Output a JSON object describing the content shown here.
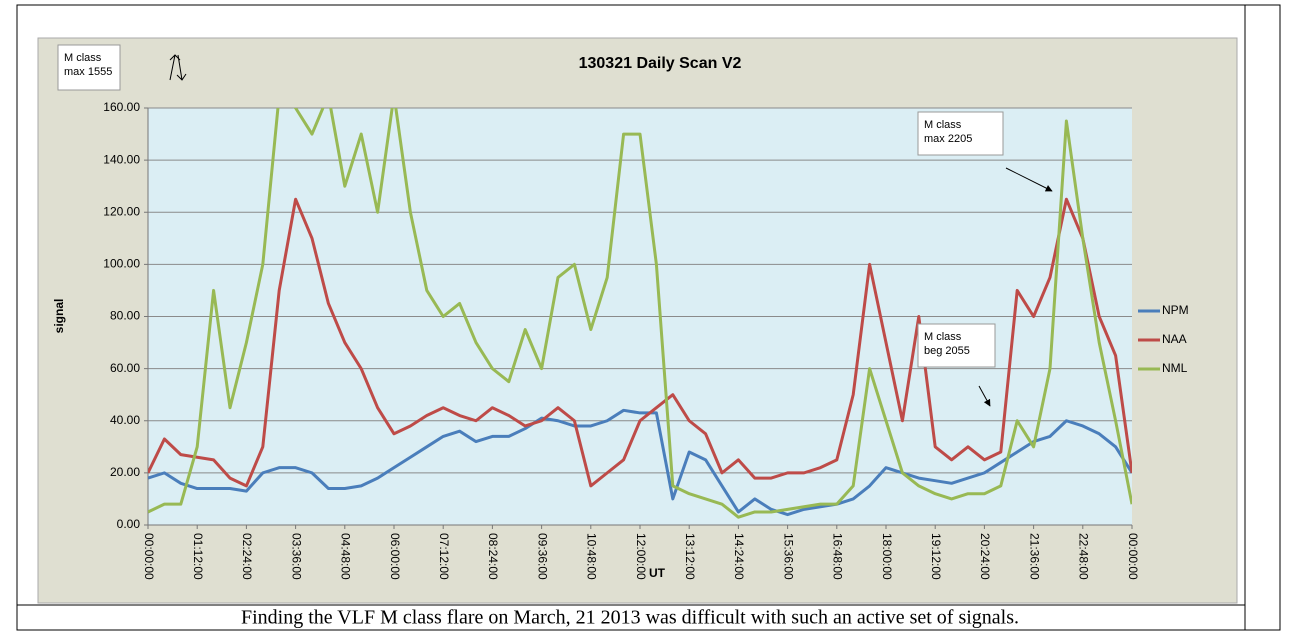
{
  "chart_data": {
    "type": "line",
    "title": "130321 Daily Scan V2",
    "x_label": "UT",
    "y_label": "signal",
    "x": [
      0,
      0.4,
      0.8,
      1.2,
      1.6,
      2,
      2.4,
      2.8,
      3.2,
      3.6,
      4,
      4.4,
      4.8,
      5.2,
      5.6,
      6,
      6.4,
      6.8,
      7.2,
      7.6,
      8,
      8.4,
      8.8,
      9.2,
      9.6,
      10,
      10.4,
      10.8,
      11.2,
      11.6,
      12,
      12.4,
      12.8,
      13.2,
      13.6,
      14,
      14.4,
      14.8,
      15.2,
      15.6,
      16,
      16.4,
      16.8,
      17.2,
      17.6,
      18,
      18.4,
      18.8,
      19.2,
      19.6,
      20,
      20.4,
      20.8,
      21.2,
      21.6,
      22,
      22.4,
      22.8,
      23.2,
      23.6,
      24
    ],
    "series": [
      {
        "name": "NPM",
        "color": "#4a7ebb",
        "values": [
          18,
          20,
          16,
          14,
          14,
          14,
          13,
          20,
          22,
          22,
          20,
          14,
          14,
          15,
          18,
          22,
          26,
          30,
          34,
          36,
          32,
          34,
          34,
          37,
          41,
          40,
          38,
          38,
          40,
          44,
          43,
          43,
          10,
          28,
          25,
          15,
          5,
          10,
          6,
          4,
          6,
          7,
          8,
          10,
          15,
          22,
          20,
          18,
          17,
          16,
          18,
          20,
          24,
          28,
          32,
          34,
          40,
          38,
          35,
          30,
          20
        ]
      },
      {
        "name": "NAA",
        "color": "#be4b48",
        "values": [
          20,
          33,
          27,
          26,
          25,
          18,
          15,
          30,
          90,
          125,
          110,
          85,
          70,
          60,
          45,
          35,
          38,
          42,
          45,
          42,
          40,
          45,
          42,
          38,
          40,
          45,
          40,
          15,
          20,
          25,
          40,
          45,
          50,
          40,
          35,
          20,
          25,
          18,
          18,
          20,
          20,
          22,
          25,
          50,
          100,
          70,
          40,
          80,
          30,
          25,
          30,
          25,
          28,
          90,
          80,
          95,
          125,
          110,
          80,
          65,
          20
        ]
      },
      {
        "name": "NML",
        "color": "#98b954",
        "values": [
          5,
          8,
          8,
          30,
          90,
          45,
          70,
          100,
          165,
          160,
          150,
          165,
          130,
          150,
          120,
          165,
          120,
          90,
          80,
          85,
          70,
          60,
          55,
          75,
          60,
          95,
          100,
          75,
          95,
          150,
          150,
          100,
          15,
          12,
          10,
          8,
          3,
          5,
          5,
          6,
          7,
          8,
          8,
          15,
          60,
          40,
          20,
          15,
          12,
          10,
          12,
          12,
          15,
          40,
          30,
          60,
          155,
          110,
          70,
          40,
          8
        ]
      }
    ],
    "xlim": [
      0,
      24
    ],
    "xticks": [
      {
        "value": 0,
        "label": "00:00:00"
      },
      {
        "value": 1.2,
        "label": "01:12:00"
      },
      {
        "value": 2.4,
        "label": "02:24:00"
      },
      {
        "value": 3.6,
        "label": "03:36:00"
      },
      {
        "value": 4.8,
        "label": "04:48:00"
      },
      {
        "value": 6,
        "label": "06:00:00"
      },
      {
        "value": 7.2,
        "label": "07:12:00"
      },
      {
        "value": 8.4,
        "label": "08:24:00"
      },
      {
        "value": 9.6,
        "label": "09:36:00"
      },
      {
        "value": 10.8,
        "label": "10:48:00"
      },
      {
        "value": 12,
        "label": "12:00:00"
      },
      {
        "value": 13.2,
        "label": "13:12:00"
      },
      {
        "value": 14.4,
        "label": "14:24:00"
      },
      {
        "value": 15.6,
        "label": "15:36:00"
      },
      {
        "value": 16.8,
        "label": "16:48:00"
      },
      {
        "value": 18,
        "label": "18:00:00"
      },
      {
        "value": 19.2,
        "label": "19:12:00"
      },
      {
        "value": 20.4,
        "label": "20:24:00"
      },
      {
        "value": 21.6,
        "label": "21:36:00"
      },
      {
        "value": 22.8,
        "label": "22:48:00"
      },
      {
        "value": 24,
        "label": "00:00:00"
      }
    ],
    "ylim": [
      0,
      160
    ],
    "yticks": [
      {
        "value": 0,
        "label": "0.00"
      },
      {
        "value": 20,
        "label": "20.00"
      },
      {
        "value": 40,
        "label": "40.00"
      },
      {
        "value": 60,
        "label": "60.00"
      },
      {
        "value": 80,
        "label": "80.00"
      },
      {
        "value": 100,
        "label": "100.00"
      },
      {
        "value": 120,
        "label": "120.00"
      },
      {
        "value": 140,
        "label": "140.00"
      },
      {
        "value": 160,
        "label": "160.00"
      }
    ],
    "grid": true,
    "legend": "right",
    "annotations": [
      {
        "text": [
          "M class",
          "max 1555"
        ]
      },
      {
        "text": [
          "M class",
          "max 2205"
        ]
      },
      {
        "text": [
          "M class",
          "beg 2055"
        ]
      }
    ],
    "caption": "Finding the VLF M class flare on March, 21 2013 was difficult with such an active set of signals."
  }
}
